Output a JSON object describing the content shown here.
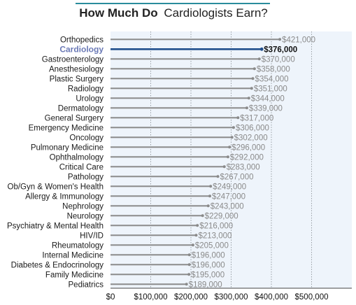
{
  "chart_data": {
    "type": "bar",
    "orientation": "horizontal",
    "title_bold": "How Much Do",
    "title_rest": "Cardiologists Earn?",
    "categories": [
      "Orthopedics",
      "Cardiology",
      "Gastroenterology",
      "Anesthesiology",
      "Plastic Surgery",
      "Radiology",
      "Urology",
      "Dermatology",
      "General Surgery",
      "Emergency Medicine",
      "Oncology",
      "Pulmonary Medicine",
      "Ophthalmology",
      "Critical Care",
      "Pathology",
      "Ob/Gyn & Women's Health",
      "Allergy & Immunology",
      "Nephrology",
      "Neurology",
      "Psychiatry & Mental Health",
      "HIV/ID",
      "Rheumatology",
      "Internal Medicine",
      "Diabetes & Endocrinology",
      "Family Medicine",
      "Pediatrics"
    ],
    "values": [
      421000,
      376000,
      370000,
      358000,
      354000,
      351000,
      344000,
      339000,
      317000,
      306000,
      302000,
      296000,
      292000,
      283000,
      267000,
      249000,
      247000,
      243000,
      229000,
      216000,
      213000,
      205000,
      196000,
      196000,
      195000,
      189000
    ],
    "value_labels": [
      "$421,000",
      "$376,000",
      "$370,000",
      "$358,000",
      "$354,000",
      "$351,000",
      "$344,000",
      "$339,000",
      "$317,000",
      "$306,000",
      "$302,000",
      "$296,000",
      "$292,000",
      "$283,000",
      "$267,000",
      "$249,000",
      "$247,000",
      "$243,000",
      "$229,000",
      "$216,000",
      "$213,000",
      "$205,000",
      "$196,000",
      "$196,000",
      "$195,000",
      "$189,000"
    ],
    "highlight": "Cardiology",
    "xticks": [
      0,
      100000,
      200000,
      300000,
      400000,
      500000
    ],
    "xtick_labels": [
      "$0",
      "$100,000",
      "$200,000",
      "$300,000",
      "$400,000",
      "$500,000"
    ],
    "xlim": [
      0,
      600000
    ],
    "grid": "vertical dotted",
    "xlabel": "",
    "ylabel": ""
  },
  "colors": {
    "bar": "#8a8a8a",
    "highlight_bar": "#1f4e8c",
    "highlight_label": "#6b7ab6",
    "band": "#eef4fb",
    "title_rule": "#2a8c9c",
    "grid": "#9aa0a6"
  }
}
